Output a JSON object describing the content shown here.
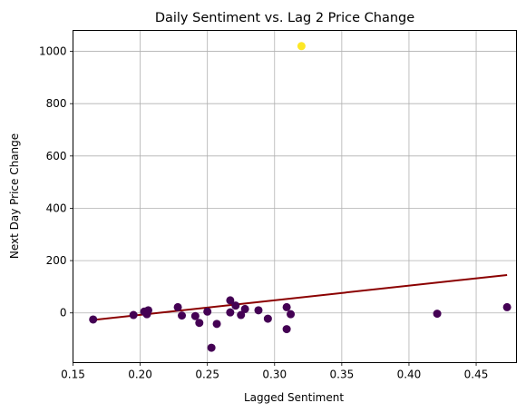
{
  "chart_data": {
    "type": "scatter",
    "title": "Daily Sentiment vs. Lag 2 Price Change",
    "xlabel": "Lagged Sentiment",
    "ylabel": "Next Day Price Change",
    "xlim": [
      0.15,
      0.48
    ],
    "ylim": [
      -190,
      1080
    ],
    "xticks": [
      0.15,
      0.2,
      0.25,
      0.3,
      0.35,
      0.4,
      0.45
    ],
    "xtick_labels": [
      "0.15",
      "0.20",
      "0.25",
      "0.30",
      "0.35",
      "0.40",
      "0.45"
    ],
    "yticks": [
      0,
      200,
      400,
      600,
      800,
      1000
    ],
    "ytick_labels": [
      "0",
      "200",
      "400",
      "600",
      "800",
      "1000"
    ],
    "grid": true,
    "colormap": "viridis",
    "color_low": "#440154",
    "color_high": "#fde725",
    "points": [
      {
        "x": 0.165,
        "y": -25
      },
      {
        "x": 0.195,
        "y": -8
      },
      {
        "x": 0.203,
        "y": 5
      },
      {
        "x": 0.205,
        "y": -5
      },
      {
        "x": 0.206,
        "y": 10
      },
      {
        "x": 0.228,
        "y": 22
      },
      {
        "x": 0.231,
        "y": -10
      },
      {
        "x": 0.241,
        "y": -12
      },
      {
        "x": 0.244,
        "y": -38
      },
      {
        "x": 0.25,
        "y": 5
      },
      {
        "x": 0.253,
        "y": -133
      },
      {
        "x": 0.257,
        "y": -42
      },
      {
        "x": 0.267,
        "y": 48
      },
      {
        "x": 0.267,
        "y": 2
      },
      {
        "x": 0.271,
        "y": 28
      },
      {
        "x": 0.275,
        "y": -8
      },
      {
        "x": 0.278,
        "y": 15
      },
      {
        "x": 0.288,
        "y": 10
      },
      {
        "x": 0.295,
        "y": -22
      },
      {
        "x": 0.309,
        "y": 22
      },
      {
        "x": 0.309,
        "y": -62
      },
      {
        "x": 0.312,
        "y": -5
      },
      {
        "x": 0.32,
        "y": 1020
      },
      {
        "x": 0.421,
        "y": -3
      },
      {
        "x": 0.473,
        "y": 22
      }
    ],
    "regression_line": {
      "x": [
        0.165,
        0.473
      ],
      "y": [
        -27,
        145
      ],
      "color": "#8b0000"
    }
  }
}
